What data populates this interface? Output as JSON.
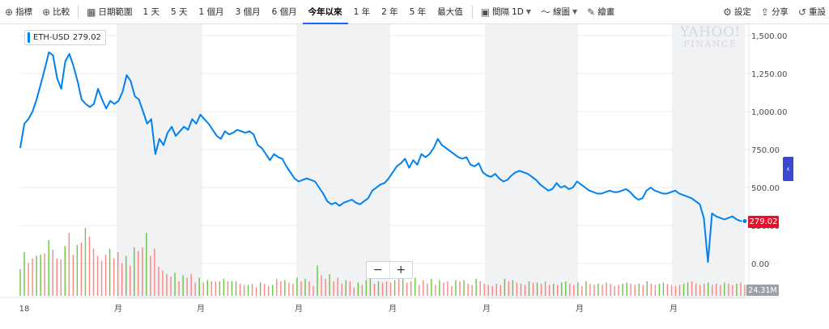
{
  "toolbar": {
    "indicators": "指標",
    "compare": "比較",
    "date_range": "日期範圍",
    "ranges": [
      "1 天",
      "5 天",
      "1 個月",
      "3 個月",
      "6 個月",
      "今年以來",
      "1 年",
      "2 年",
      "5 年",
      "最大值"
    ],
    "active_range": "今年以來",
    "interval_label": "間隔",
    "interval_value": "1D",
    "chart_type": "線圖",
    "draw": "繪畫",
    "settings": "設定",
    "share": "分享",
    "reset": "重設"
  },
  "legend": {
    "symbol": "ETH-USD",
    "price": "279.02"
  },
  "watermark": {
    "main": "YAHOO!",
    "sub": "FINANCE"
  },
  "zoom": {
    "out": "−",
    "in": "+"
  },
  "badges": {
    "price": "279.02",
    "volume": "24.31M"
  },
  "colors": {
    "line": "#0081f2",
    "price_badge": "#eb0f29",
    "vol_up": "#3bb300",
    "vol_down": "#ff5c5c",
    "band": "#f1f2f4"
  },
  "chart_data": {
    "type": "line",
    "series": [
      {
        "values": [
          760,
          920,
          950,
          1000,
          1080,
          1180,
          1280,
          1390,
          1370,
          1220,
          1150,
          1330,
          1380,
          1300,
          1200,
          1080,
          1050,
          1030,
          1050,
          1150,
          1080,
          1020,
          1070,
          1050,
          1070,
          1130,
          1240,
          1200,
          1100,
          1080,
          1000,
          920,
          950,
          720,
          820,
          780,
          860,
          900,
          840,
          870,
          900,
          880,
          950,
          920,
          980,
          950,
          920,
          880,
          840,
          820,
          870,
          850,
          860,
          880,
          870,
          860,
          870,
          850,
          780,
          760,
          720,
          680,
          720,
          700,
          690,
          640,
          600,
          560,
          540,
          550,
          560,
          550,
          540,
          500,
          460,
          410,
          390,
          400,
          380,
          400,
          410,
          420,
          400,
          390,
          410,
          430,
          480,
          500,
          520,
          530,
          560,
          600,
          640,
          660,
          690,
          630,
          680,
          650,
          720,
          700,
          720,
          760,
          820,
          780,
          760,
          740,
          720,
          700,
          690,
          700,
          650,
          640,
          660,
          600,
          580,
          570,
          590,
          560,
          540,
          550,
          580,
          600,
          610,
          600,
          590,
          570,
          550,
          520,
          500,
          480,
          490,
          530,
          500,
          510,
          490,
          500,
          540,
          520,
          500,
          480,
          470,
          460,
          460,
          470,
          480,
          470,
          470,
          480,
          490,
          470,
          440,
          420,
          430,
          480,
          500,
          480,
          470,
          460,
          460,
          470,
          480,
          460,
          450,
          440,
          430,
          410,
          390,
          300,
          10,
          330,
          310,
          300,
          290,
          300,
          310,
          290,
          280,
          279.02
        ]
      }
    ],
    "volume": [
      22,
      36,
      27,
      31,
      33,
      34,
      35,
      46,
      38,
      31,
      30,
      41,
      52,
      34,
      42,
      44,
      56,
      49,
      39,
      33,
      29,
      34,
      39,
      31,
      36,
      27,
      33,
      25,
      40,
      37,
      40,
      52,
      33,
      39,
      24,
      21,
      18,
      16,
      19,
      12,
      17,
      15,
      18,
      11,
      15,
      11,
      13,
      12,
      12,
      12,
      14,
      12,
      12,
      12,
      10,
      9,
      9,
      10,
      7,
      11,
      10,
      8,
      9,
      14,
      12,
      13,
      11,
      10,
      15,
      12,
      14,
      12,
      8,
      25,
      17,
      14,
      18,
      12,
      15,
      10,
      13,
      12,
      7,
      11,
      9,
      13,
      14,
      10,
      12,
      11,
      12,
      11,
      13,
      15,
      19,
      11,
      12,
      15,
      9,
      13,
      10,
      14,
      9,
      13,
      11,
      12,
      8,
      13,
      12,
      13,
      10,
      9,
      14,
      12,
      10,
      9,
      8,
      10,
      9,
      14,
      12,
      13,
      11,
      10,
      9,
      12,
      11,
      11,
      10,
      12,
      9,
      10,
      9,
      11,
      12,
      10,
      9,
      11,
      8,
      12,
      10,
      9,
      10,
      9,
      11,
      10,
      8,
      9,
      10,
      11,
      10,
      9,
      10,
      9,
      12,
      10,
      9,
      10,
      11,
      10,
      9,
      8,
      9,
      10,
      11,
      12,
      10,
      9,
      10,
      11,
      9,
      10,
      9,
      11,
      10,
      9,
      10,
      11,
      9
    ],
    "y_ticks": [
      "1,500.00",
      "1,250.00",
      "1,000.00",
      "750.00",
      "500.00",
      "250.00",
      "0.00"
    ],
    "x_labels": [
      "18",
      "月",
      "月",
      "月",
      "月",
      "月",
      "月",
      "月"
    ],
    "ylim": [
      0,
      1500
    ],
    "grid": true
  }
}
